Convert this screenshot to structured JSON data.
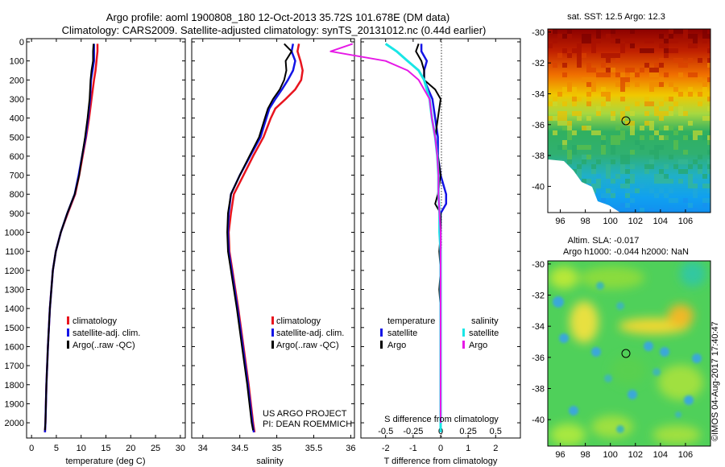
{
  "header": {
    "line1": "Argo profile: aoml 1900808_180 12-Oct-2013 35.72S 101.678E (DM data)",
    "line2": "Climatology: CARS2009. Satellite-adjusted climatology: synTS_20131012.nc (0.44d earlier)"
  },
  "depth_ticks": [
    "0",
    "100",
    "200",
    "300",
    "400",
    "500",
    "600",
    "700",
    "800",
    "900",
    "1000",
    "1100",
    "1200",
    "1300",
    "1400",
    "1500",
    "1600",
    "1700",
    "1800",
    "1900",
    "2000"
  ],
  "colors": {
    "climatology": "#e8141e",
    "satellite": "#1414e6",
    "argo": "#000000",
    "sat_salinity": "#19e6e6",
    "argo_salinity": "#e619e6"
  },
  "chart_data": [
    {
      "type": "line",
      "xlabel": "temperature (deg C)",
      "xlim": [
        -1,
        31
      ],
      "ylim": [
        0,
        2080
      ],
      "xticks": [
        "0",
        "5",
        "10",
        "15",
        "20",
        "25",
        "30"
      ],
      "legend": [
        "climatology",
        "satellite-adj. clim.",
        "Argo(..raw -QC)"
      ],
      "series": [
        {
          "name": "climatology",
          "depth": [
            10,
            50,
            100,
            150,
            200,
            300,
            400,
            500,
            600,
            700,
            800,
            900,
            1000,
            1100,
            1200,
            1400,
            1600,
            1800,
            2000,
            2050
          ],
          "values": [
            13.3,
            13.3,
            13.1,
            12.9,
            12.6,
            12.1,
            11.6,
            11.0,
            10.3,
            9.6,
            8.8,
            7.3,
            5.9,
            4.9,
            4.3,
            3.7,
            3.3,
            3.0,
            2.8,
            2.7
          ]
        },
        {
          "name": "satellite-adj. clim.",
          "depth": [
            10,
            50,
            100,
            150,
            200,
            300,
            400,
            500,
            600,
            700,
            800,
            900,
            1000,
            1100,
            1200,
            1400,
            1600,
            1800,
            2000,
            2050
          ],
          "values": [
            12.6,
            12.6,
            12.6,
            12.3,
            12.0,
            11.8,
            11.4,
            10.9,
            10.2,
            9.5,
            8.7,
            7.2,
            5.9,
            4.9,
            4.3,
            3.7,
            3.3,
            3.0,
            2.8,
            2.7
          ]
        },
        {
          "name": "Argo(..raw -QC)",
          "depth": [
            10,
            50,
            100,
            150,
            200,
            300,
            400,
            500,
            600,
            700,
            800,
            900,
            1000,
            1100,
            1200,
            1400,
            1600,
            1800,
            2000,
            2040
          ],
          "values": [
            12.5,
            12.4,
            12.4,
            12.1,
            11.9,
            11.7,
            11.3,
            10.8,
            10.2,
            9.6,
            8.7,
            7.2,
            5.9,
            4.9,
            4.3,
            3.7,
            3.3,
            3.0,
            2.8,
            2.7
          ]
        }
      ]
    },
    {
      "type": "line",
      "xlabel": "salinity",
      "xlim": [
        33.85,
        36.05
      ],
      "ylim": [
        0,
        2080
      ],
      "xticks": [
        "34",
        "34.5",
        "35",
        "35.5",
        "36"
      ],
      "legend": [
        "climatology",
        "satellite-adj. clim.",
        "Argo(..raw -QC)"
      ],
      "annotation": [
        "US ARGO PROJECT",
        "PI: DEAN ROEMMICH"
      ],
      "series": [
        {
          "name": "climatology",
          "depth": [
            10,
            50,
            100,
            150,
            200,
            250,
            300,
            350,
            400,
            500,
            600,
            700,
            800,
            900,
            1000,
            1100,
            1200,
            1400,
            1600,
            1800,
            2000,
            2050
          ],
          "values": [
            35.3,
            35.28,
            35.32,
            35.35,
            35.33,
            35.25,
            35.12,
            34.98,
            34.92,
            34.82,
            34.68,
            34.55,
            34.42,
            34.38,
            34.35,
            34.36,
            34.4,
            34.48,
            34.55,
            34.62,
            34.68,
            34.7
          ]
        },
        {
          "name": "satellite-adj. clim.",
          "depth": [
            10,
            50,
            100,
            150,
            200,
            250,
            300,
            350,
            400,
            500,
            600,
            700,
            800,
            900,
            1000,
            1100,
            1200,
            1400,
            1600,
            1800,
            2000,
            2050
          ],
          "values": [
            35.22,
            35.2,
            35.25,
            35.22,
            35.15,
            35.07,
            34.98,
            34.9,
            34.86,
            34.78,
            34.64,
            34.5,
            34.38,
            34.35,
            34.34,
            34.35,
            34.39,
            34.47,
            34.54,
            34.61,
            34.67,
            34.69
          ]
        },
        {
          "name": "Argo(..raw -QC)",
          "depth": [
            10,
            50,
            100,
            150,
            200,
            250,
            300,
            350,
            400,
            500,
            600,
            700,
            800,
            900,
            1000,
            1100,
            1200,
            1400,
            1600,
            1800,
            2000,
            2040
          ],
          "values": [
            35.1,
            35.2,
            35.12,
            35.13,
            35.1,
            35.04,
            34.95,
            34.88,
            34.84,
            34.76,
            34.63,
            34.5,
            34.38,
            34.34,
            34.33,
            34.34,
            34.38,
            34.46,
            34.53,
            34.6,
            34.66,
            34.68
          ]
        }
      ]
    },
    {
      "type": "line",
      "xlabel": "T difference from climatology",
      "xlabel2": "S difference from climatology",
      "xlim": [
        -2.9,
        2.9
      ],
      "ylim": [
        0,
        2080
      ],
      "xticks": [
        "-2",
        "-1",
        "0",
        "1",
        "2"
      ],
      "xticks2": [
        "-0.5",
        "-0.25",
        "0",
        "0.25",
        "0.5"
      ],
      "legend_headers": [
        "temperature",
        "salinity"
      ],
      "legend": [
        "satellite",
        "Argo",
        "satellite",
        "Argo"
      ],
      "series": [
        {
          "name": "satellite",
          "depth": [
            10,
            50,
            100,
            150,
            200,
            300,
            400,
            500,
            600,
            700,
            800,
            850,
            900,
            1000,
            1100,
            1200,
            1400,
            1600,
            1800,
            2000,
            2050
          ],
          "values": [
            -0.7,
            -0.7,
            -0.5,
            -0.6,
            -0.6,
            -0.3,
            -0.2,
            -0.1,
            -0.1,
            0.0,
            0.2,
            0.2,
            0.0,
            0.0,
            0.0,
            0.0,
            0.0,
            0.0,
            0.0,
            0.0,
            0.0
          ]
        },
        {
          "name": "Argo",
          "depth": [
            10,
            50,
            100,
            150,
            200,
            250,
            300,
            400,
            500,
            600,
            700,
            800,
            850,
            900,
            1000,
            1100,
            1200,
            1300,
            1400,
            1600,
            1800,
            2000,
            2040
          ],
          "values": [
            -0.8,
            -0.9,
            -0.7,
            -0.6,
            -0.6,
            -0.2,
            0.0,
            -0.1,
            -0.2,
            -0.1,
            0.0,
            -0.1,
            -0.2,
            0.0,
            0.0,
            -0.05,
            0.0,
            -0.05,
            0.0,
            0.0,
            0.0,
            0.0,
            0.0
          ]
        },
        {
          "name": "satellite",
          "depth": [
            10,
            50,
            100,
            150,
            200,
            300,
            400,
            500,
            600,
            700,
            800,
            900,
            1000,
            1100,
            1200,
            1400,
            1600,
            1800,
            2000,
            2050
          ],
          "values": [
            -0.5,
            -0.4,
            -0.3,
            -0.2,
            -0.15,
            -0.1,
            -0.08,
            -0.05,
            -0.03,
            -0.02,
            -0.02,
            -0.01,
            -0.01,
            0.0,
            0.0,
            0.0,
            0.0,
            0.0,
            0.0,
            0.0
          ]
        },
        {
          "name": "Argo",
          "depth": [
            10,
            50,
            100,
            150,
            200,
            300,
            400,
            500,
            600,
            700,
            800,
            900,
            1000,
            1100,
            1200,
            1400,
            1600,
            1800,
            2000
          ],
          "values": [
            -0.8,
            -1.0,
            -0.5,
            -0.3,
            -0.2,
            -0.1,
            -0.08,
            -0.05,
            -0.03,
            -0.02,
            -0.02,
            -0.01,
            0.0,
            0.0,
            0.0,
            0.0,
            0.0,
            0.0,
            0.0
          ]
        }
      ]
    },
    {
      "type": "heatmap",
      "title": "sat. SST: 12.5 Argo: 12.3",
      "xlim": [
        95,
        108
      ],
      "ylim": [
        -41.7,
        -29.8
      ],
      "xticks": [
        "96",
        "98",
        "100",
        "102",
        "104",
        "106"
      ],
      "yticks": [
        "-30",
        "-32",
        "-34",
        "-36",
        "-38",
        "-40"
      ],
      "marker": {
        "lon": 101.678,
        "lat": -35.72
      }
    },
    {
      "type": "heatmap",
      "title": "Altim. SLA: -0.017",
      "subtitle": "Argo h1000: -0.044 h2000: NaN",
      "xlim": [
        95,
        108
      ],
      "ylim": [
        -41.7,
        -29.8
      ],
      "xticks": [
        "96",
        "98",
        "100",
        "102",
        "104",
        "106"
      ],
      "yticks": [
        "-30",
        "-32",
        "-34",
        "-36",
        "-38",
        "-40"
      ],
      "marker": {
        "lon": 101.678,
        "lat": -35.72
      }
    }
  ],
  "credit": "©IMOS 04-Aug-2017 17:40:47"
}
